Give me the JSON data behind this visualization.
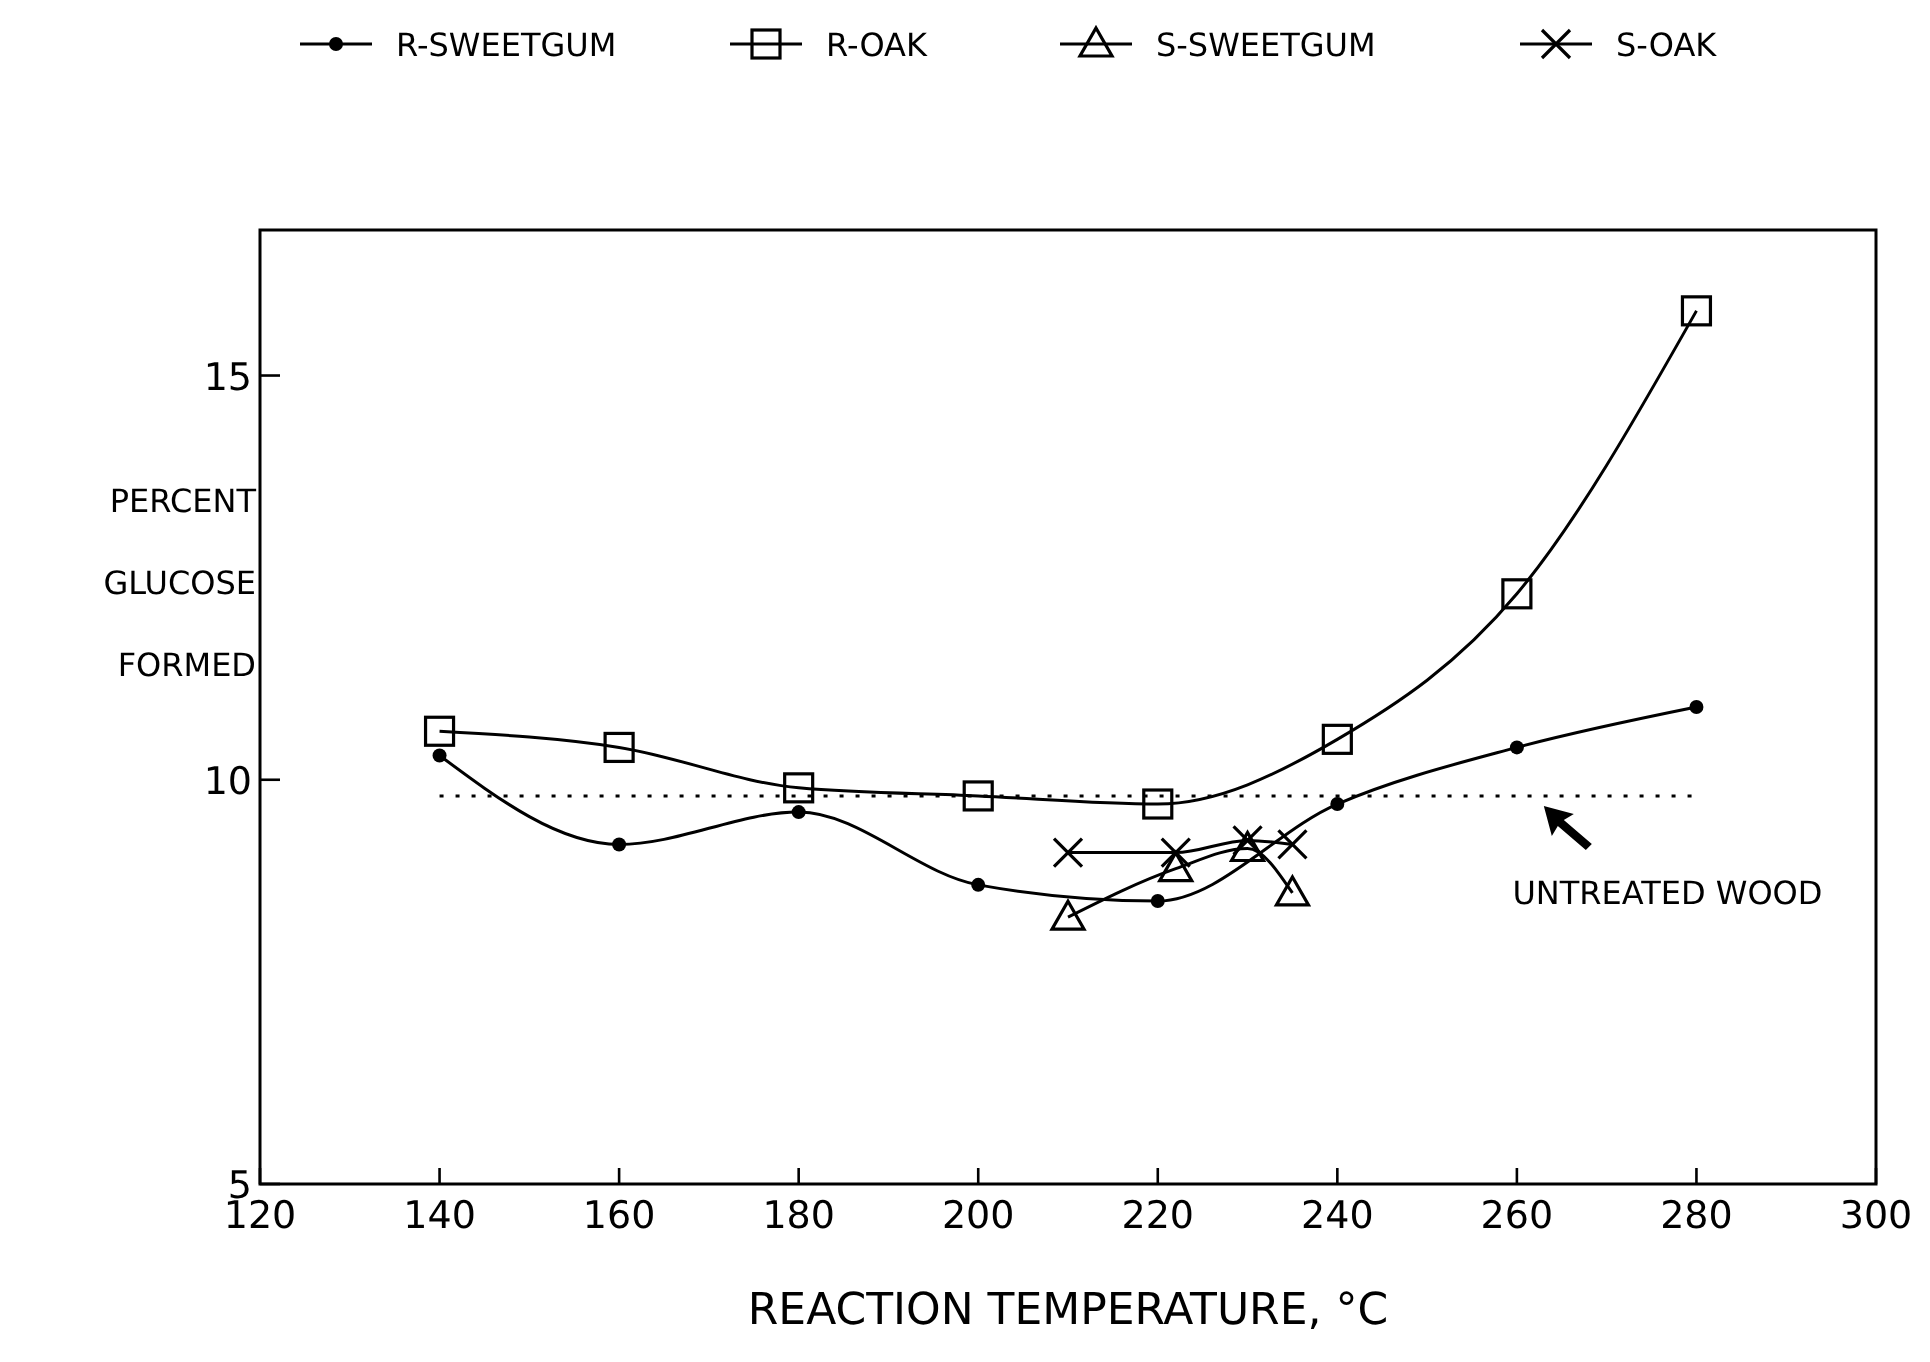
{
  "chart_data": {
    "type": "line",
    "xlabel": "REACTION TEMPERATURE, °C",
    "ylabel": "PERCENT GLUCOSE FORMED",
    "xlim": [
      120,
      300
    ],
    "xticks": [
      120,
      140,
      160,
      180,
      200,
      220,
      240,
      260,
      280,
      300
    ],
    "ylim": [
      5,
      16.8
    ],
    "yticks": [
      5,
      10,
      15
    ],
    "grid": false,
    "legend": "top",
    "line_style": "solid",
    "series": [
      {
        "name": "R-SWEETGUM",
        "color": "#000000",
        "marker": "circle",
        "x": [
          140,
          160,
          180,
          200,
          220,
          240,
          260,
          280
        ],
        "values": [
          10.3,
          9.2,
          9.6,
          8.7,
          8.5,
          9.7,
          10.4,
          10.9
        ]
      },
      {
        "name": "R-OAK",
        "color": "#000000",
        "marker": "square",
        "x": [
          140,
          160,
          180,
          200,
          220,
          240,
          260,
          280
        ],
        "values": [
          10.6,
          10.4,
          9.9,
          9.8,
          9.7,
          10.5,
          12.3,
          15.8
        ]
      },
      {
        "name": "S-SWEETGUM",
        "color": "#000000",
        "marker": "triangle",
        "x": [
          210,
          222,
          230,
          235
        ],
        "values": [
          8.3,
          8.9,
          9.15,
          8.6
        ]
      },
      {
        "name": "S-OAK",
        "color": "#000000",
        "marker": "cross",
        "x": [
          210,
          222,
          230,
          235
        ],
        "values": [
          9.1,
          9.1,
          9.25,
          9.2
        ]
      }
    ],
    "ref_lines": [
      {
        "axis": "y",
        "value": 9.8,
        "label": "UNTREATED WOOD",
        "line_style": "dotted"
      }
    ]
  }
}
